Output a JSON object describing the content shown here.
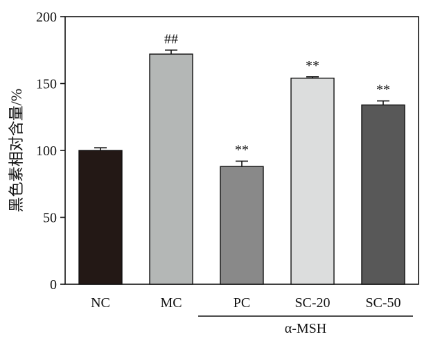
{
  "chart_data": {
    "type": "bar",
    "categories": [
      "NC",
      "MC",
      "PC",
      "SC-20",
      "SC-50"
    ],
    "values": [
      100,
      172,
      88,
      154,
      134
    ],
    "errors": [
      2,
      3,
      4,
      1,
      3
    ],
    "annotations": [
      "",
      "##",
      "**",
      "**",
      "**"
    ],
    "bar_colors": [
      "#231815",
      "#b4b7b6",
      "#898989",
      "#dcdddd",
      "#585858"
    ],
    "ylabel": "黑色素相对含量/%",
    "xlabel": "",
    "ylim": [
      0,
      200
    ],
    "yticks": [
      0,
      50,
      100,
      150,
      200
    ],
    "group_label": "α-MSH",
    "group_categories": [
      "PC",
      "SC-20",
      "SC-50"
    ],
    "grid": false,
    "legend": "none"
  }
}
